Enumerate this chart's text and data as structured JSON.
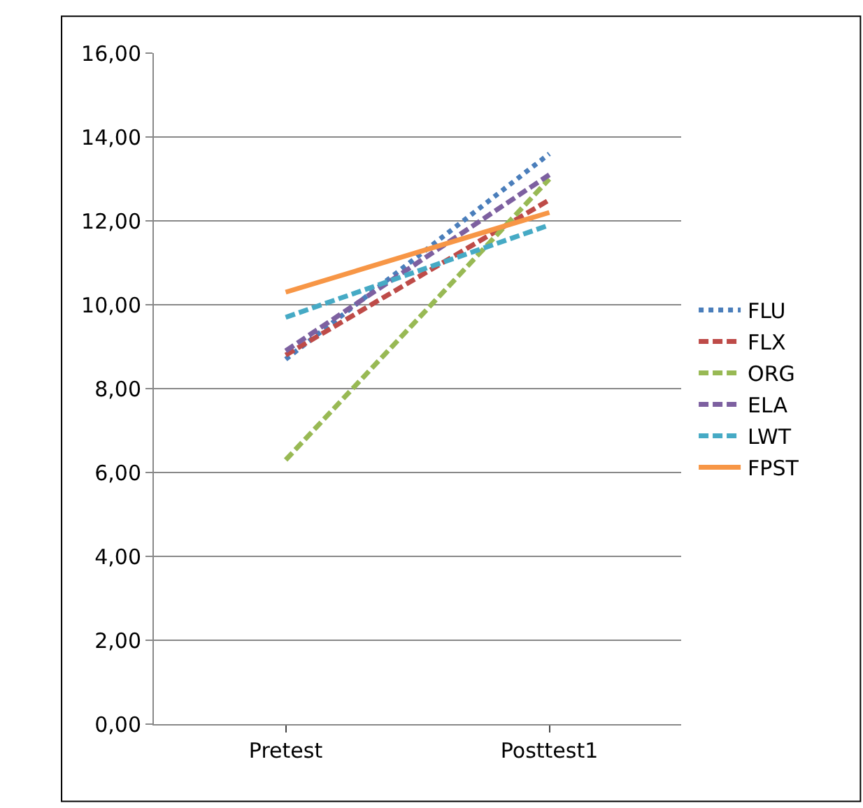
{
  "chart_data": {
    "type": "line",
    "categories": [
      "Pretest",
      "Posttest1"
    ],
    "series": [
      {
        "name": "FLU",
        "color": "#4a7ebb",
        "line_style": "dotted",
        "values": [
          8.7,
          13.6
        ]
      },
      {
        "name": "FLX",
        "color": "#be4b48",
        "line_style": "dashed",
        "values": [
          8.8,
          12.5
        ]
      },
      {
        "name": "ORG",
        "color": "#98b954",
        "line_style": "dashed",
        "values": [
          6.3,
          13.0
        ]
      },
      {
        "name": "ELA",
        "color": "#7d60a0",
        "line_style": "dashed",
        "values": [
          8.9,
          13.1
        ]
      },
      {
        "name": "LWT",
        "color": "#46aac5",
        "line_style": "dashed",
        "values": [
          9.7,
          11.9
        ]
      },
      {
        "name": "FPST",
        "color": "#f79646",
        "line_style": "solid",
        "values": [
          10.3,
          12.2
        ]
      }
    ],
    "ylim": [
      0,
      16
    ],
    "yticks": [
      {
        "value": 0,
        "label": "0,00"
      },
      {
        "value": 2,
        "label": "2,00"
      },
      {
        "value": 4,
        "label": "4,00"
      },
      {
        "value": 6,
        "label": "6,00"
      },
      {
        "value": 8,
        "label": "8,00"
      },
      {
        "value": 10,
        "label": "10,00"
      },
      {
        "value": 12,
        "label": "12,00"
      },
      {
        "value": 14,
        "label": "14,00"
      },
      {
        "value": 16,
        "label": "16,00"
      }
    ],
    "grid": "y",
    "legend": "right",
    "marker": "none"
  }
}
